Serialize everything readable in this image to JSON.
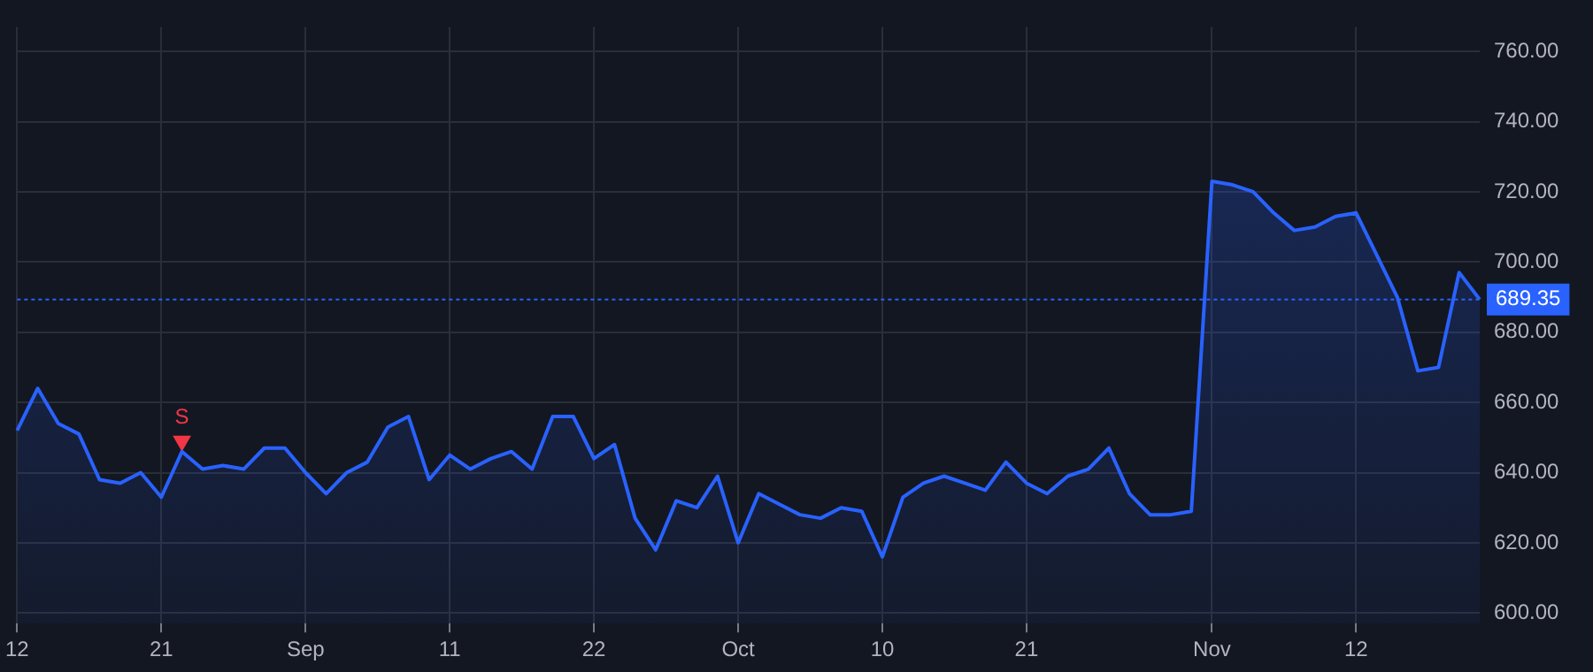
{
  "chart_data": {
    "type": "area",
    "categories": [
      "12",
      null,
      null,
      null,
      null,
      null,
      null,
      "21",
      null,
      null,
      null,
      null,
      null,
      null,
      "Sep",
      null,
      null,
      null,
      null,
      null,
      null,
      "11",
      null,
      null,
      null,
      null,
      null,
      null,
      "22",
      null,
      null,
      null,
      null,
      null,
      null,
      "Oct",
      null,
      null,
      null,
      null,
      null,
      null,
      "10",
      null,
      null,
      null,
      null,
      null,
      null,
      "21",
      null,
      null,
      null,
      null,
      null,
      null,
      null,
      null,
      "Nov",
      null,
      null,
      null,
      null,
      null,
      null,
      "12",
      null,
      null,
      null,
      null,
      null,
      null
    ],
    "series": [
      {
        "color": "#2962ff",
        "values": [
          652,
          664,
          654,
          651,
          638,
          637,
          640,
          633,
          646,
          641,
          642,
          641,
          647,
          647,
          640,
          634,
          640,
          643,
          653,
          656,
          638,
          645,
          641,
          644,
          646,
          641,
          656,
          656,
          644,
          648,
          627,
          618,
          632,
          630,
          639,
          620,
          634,
          631,
          628,
          627,
          630,
          629,
          616,
          633,
          637,
          639,
          637,
          635,
          643,
          637,
          634,
          639,
          641,
          647,
          634,
          628,
          628,
          629,
          723,
          722,
          720,
          714,
          709,
          710,
          713,
          714,
          702,
          690,
          669,
          670,
          697,
          689.35
        ]
      },
      {
        "type": "scatter",
        "name": "S",
        "color": "#f23645",
        "marker": "triangle",
        "values": [
          null,
          null,
          null,
          null,
          null,
          null,
          null,
          null,
          649,
          null,
          null,
          null,
          null,
          null,
          null,
          null,
          null,
          null,
          null,
          null,
          null,
          null,
          null,
          null,
          null,
          null,
          null,
          null,
          null,
          null,
          null,
          null,
          null,
          null,
          null,
          null,
          null,
          null,
          null,
          null,
          null,
          null,
          null,
          null,
          null,
          null,
          null,
          null,
          null,
          null,
          null,
          null,
          null,
          null,
          null,
          null,
          null,
          null,
          null,
          null,
          null,
          null,
          null,
          null,
          null,
          null,
          null,
          null,
          null,
          null,
          null,
          null
        ]
      }
    ],
    "ylim": [
      597,
      767
    ],
    "yticks": [
      {
        "value": 600,
        "label": "600.00"
      },
      {
        "value": 620,
        "label": "620.00"
      },
      {
        "value": 640,
        "label": "640.00"
      },
      {
        "value": 660,
        "label": "660.00"
      },
      {
        "value": 680,
        "label": "680.00"
      },
      {
        "value": 700,
        "label": "700.00"
      },
      {
        "value": 720,
        "label": "720.00"
      },
      {
        "value": 740,
        "label": "740.00"
      },
      {
        "value": 760,
        "label": "760.00"
      }
    ],
    "grid": true,
    "ref_lines": [
      {
        "axis": "y",
        "value": 689.35,
        "label": "689.35",
        "color": "#2962ff",
        "line_style": "dotted"
      }
    ]
  }
}
